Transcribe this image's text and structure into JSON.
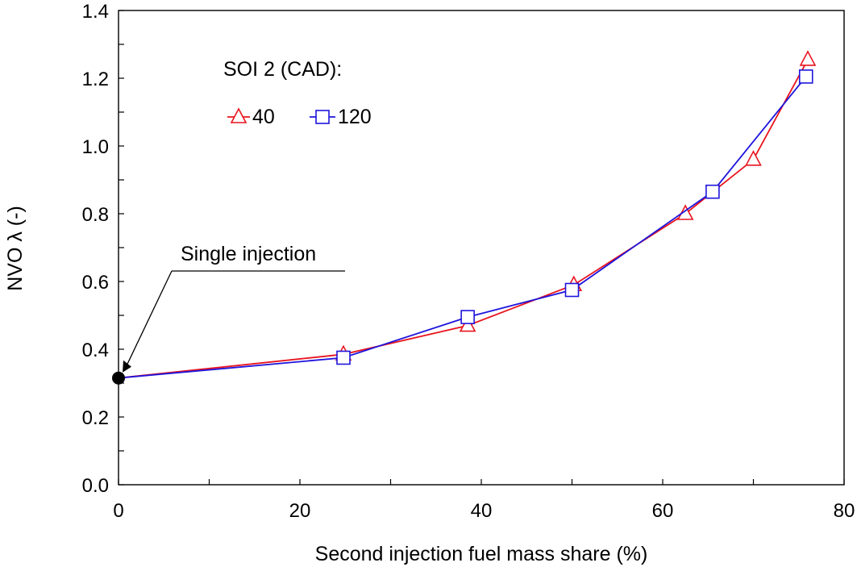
{
  "chart_data": {
    "type": "line",
    "title": "",
    "xlabel": "Second injection fuel mass share (%)",
    "ylabel": "NVO λ (-)",
    "xlim": [
      0,
      80
    ],
    "ylim": [
      0.0,
      1.4
    ],
    "x_ticks": [
      "0",
      "20",
      "40",
      "60",
      "80"
    ],
    "y_ticks": [
      "0.0",
      "0.2",
      "0.4",
      "0.6",
      "0.8",
      "1.0",
      "1.2",
      "1.4"
    ],
    "grid": false,
    "legend": {
      "title": "SOI 2 (CAD):",
      "placement": "top-left"
    },
    "series": [
      {
        "name": "40",
        "color": "#e8141e",
        "marker": "triangle",
        "x": [
          0,
          24.8,
          38.5,
          50.2,
          62.5,
          70.0,
          76.0
        ],
        "y": [
          0.315,
          0.385,
          0.47,
          0.59,
          0.8,
          0.96,
          1.255
        ]
      },
      {
        "name": "120",
        "color": "#1e14dc",
        "marker": "square",
        "x": [
          0,
          24.8,
          38.5,
          50.0,
          65.5,
          75.8
        ],
        "y": [
          0.315,
          0.375,
          0.495,
          0.575,
          0.865,
          1.205
        ]
      }
    ],
    "annotations": [
      {
        "text": "Single injection",
        "x": 0,
        "y": 0.315,
        "marker_color": "#000000"
      }
    ]
  }
}
